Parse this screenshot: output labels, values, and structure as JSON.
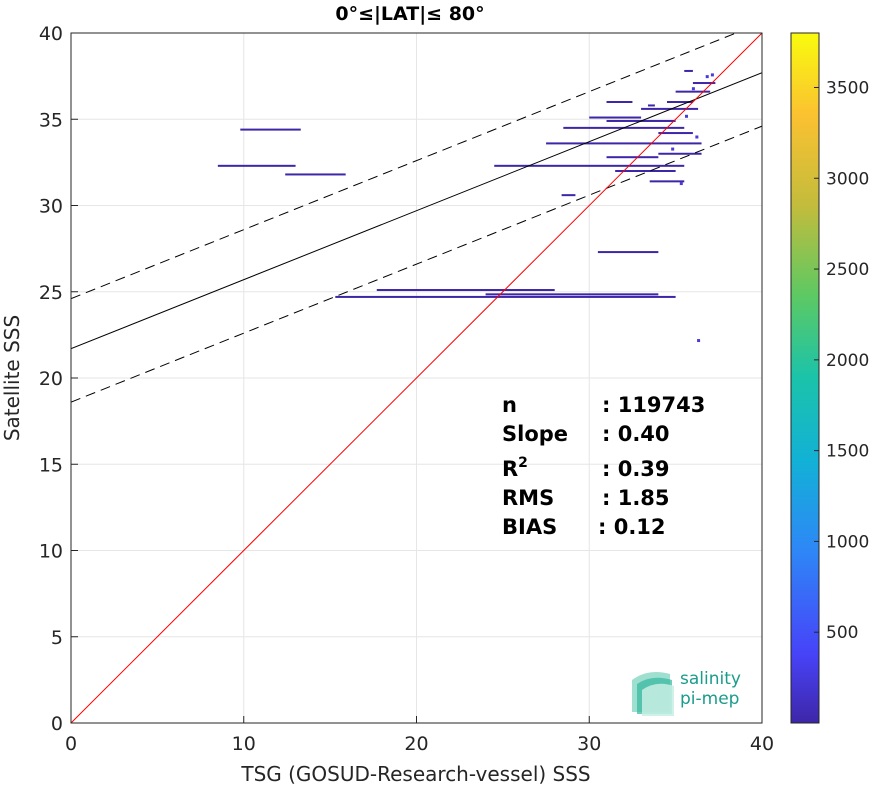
{
  "chart_data": {
    "type": "scatter",
    "title": "0°≤|LAT|≤ 80°",
    "xlabel": "TSG (GOSUD-Research-vessel) SSS",
    "ylabel": "Satellite SSS",
    "xlim": [
      0,
      40
    ],
    "ylim": [
      0,
      40
    ],
    "xticks": [
      "0",
      "10",
      "20",
      "30",
      "40"
    ],
    "yticks": [
      "0",
      "5",
      "10",
      "15",
      "20",
      "25",
      "30",
      "35",
      "40"
    ],
    "grid": true,
    "colorbar": {
      "range": [
        0,
        3800
      ],
      "ticks": [
        "500",
        "1000",
        "1500",
        "2000",
        "2500",
        "3000",
        "3500"
      ],
      "colors": [
        "#3e26a8",
        "#4743f8",
        "#2e87f7",
        "#12b1d6",
        "#1bc3aa",
        "#5dc963",
        "#c3bc3c",
        "#fbc131",
        "#f9fb0e"
      ]
    },
    "lines": {
      "identity": {
        "slope": 1,
        "intercept": 0,
        "color": "#ff0000"
      },
      "fit": {
        "slope": 0.4,
        "intercept": 21.7,
        "color": "#000000"
      },
      "upper_bound": {
        "slope": 0.4,
        "intercept": 24.6,
        "color": "#000000",
        "style": "dashed"
      },
      "lower_bound": {
        "slope": 0.4,
        "intercept": 18.6,
        "color": "#000000",
        "style": "dashed"
      }
    },
    "segments": [
      {
        "x0": 9.8,
        "x1": 13.3,
        "y": 34.4
      },
      {
        "x0": 8.5,
        "x1": 13.0,
        "y": 32.3
      },
      {
        "x0": 12.4,
        "x1": 15.9,
        "y": 31.8
      },
      {
        "x0": 15.3,
        "x1": 35.0,
        "y": 24.7
      },
      {
        "x0": 17.7,
        "x1": 28.0,
        "y": 25.1
      },
      {
        "x0": 24.0,
        "x1": 34.0,
        "y": 24.85
      },
      {
        "x0": 24.5,
        "x1": 35.5,
        "y": 32.3
      },
      {
        "x0": 27.5,
        "x1": 36.5,
        "y": 33.6
      },
      {
        "x0": 28.5,
        "x1": 35.5,
        "y": 34.5
      },
      {
        "x0": 31.0,
        "x1": 35.0,
        "y": 34.9
      },
      {
        "x0": 30.0,
        "x1": 33.0,
        "y": 35.1
      },
      {
        "x0": 33.0,
        "x1": 36.3,
        "y": 35.6
      },
      {
        "x0": 34.0,
        "x1": 36.5,
        "y": 33.0
      },
      {
        "x0": 31.5,
        "x1": 35.0,
        "y": 32.0
      },
      {
        "x0": 34.5,
        "x1": 36.0,
        "y": 36.0
      },
      {
        "x0": 35.0,
        "x1": 37.0,
        "y": 36.6
      },
      {
        "x0": 36.0,
        "x1": 37.3,
        "y": 37.1
      },
      {
        "x0": 34.0,
        "x1": 36.0,
        "y": 34.2
      },
      {
        "x0": 31.0,
        "x1": 34.0,
        "y": 32.8
      },
      {
        "x0": 33.5,
        "x1": 35.5,
        "y": 31.4
      },
      {
        "x0": 31.0,
        "x1": 32.5,
        "y": 36.0
      },
      {
        "x0": 30.5,
        "x1": 34.0,
        "y": 27.3
      },
      {
        "x0": 28.4,
        "x1": 29.2,
        "y": 30.6
      },
      {
        "x0": 35.5,
        "x1": 36.0,
        "y": 37.8
      },
      {
        "x0": 33.4,
        "x1": 33.8,
        "y": 35.8
      }
    ],
    "points": [
      {
        "x": 36.3,
        "y": 22.2
      },
      {
        "x": 35.3,
        "y": 31.3
      },
      {
        "x": 36.8,
        "y": 37.5
      },
      {
        "x": 37.1,
        "y": 37.6
      },
      {
        "x": 36.0,
        "y": 36.8
      },
      {
        "x": 35.6,
        "y": 35.2
      },
      {
        "x": 36.2,
        "y": 34.0
      },
      {
        "x": 34.8,
        "y": 33.3
      }
    ],
    "stats": {
      "n_label": "n",
      "n_value": ": 119743",
      "slope_label": "Slope",
      "slope_value": ": 0.40",
      "r2_label": "R",
      "r2_sup": "2",
      "r2_value": ": 0.39",
      "rms_label": "RMS",
      "rms_value": ": 1.85",
      "bias_label": "BIAS",
      "bias_value": ": 0.12"
    },
    "logo": {
      "line1": "salinity",
      "line2": "pi-mep"
    }
  }
}
